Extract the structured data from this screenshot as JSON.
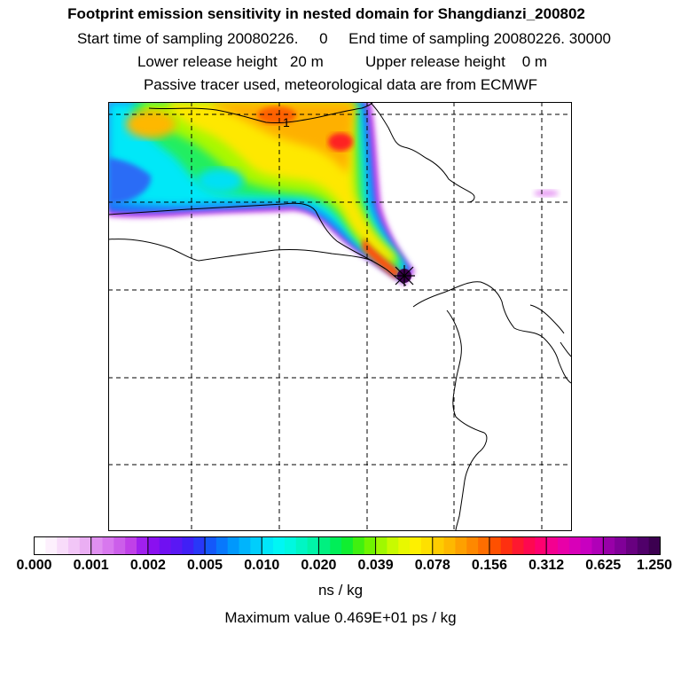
{
  "title": "Footprint emission sensitivity in nested domain for Shangdianzi_200802",
  "sampling": {
    "start_label": "Start time of sampling",
    "start_value": "20080226.     0",
    "end_label": "End time of sampling",
    "end_value": "20080226. 30000"
  },
  "release": {
    "lower_label": "Lower release height",
    "lower_value": "20 m",
    "upper_label": "Upper release height",
    "upper_value": "0 m"
  },
  "tracer_note": "Passive tracer used, meteorological data are from ECMWF",
  "map": {
    "contour_label": "1",
    "source_marker": "receptor-star-icon"
  },
  "colorbar": {
    "ticks": [
      "0.000",
      "0.001",
      "0.002",
      "0.005",
      "0.010",
      "0.020",
      "0.039",
      "0.078",
      "0.156",
      "0.312",
      "0.625",
      "1.250"
    ],
    "colors": [
      "#ffffff",
      "#fdf0fd",
      "#f8dcfa",
      "#f2c6f7",
      "#eaaef3",
      "#e090f0",
      "#d878ee",
      "#cc5eea",
      "#c040e8",
      "#a020ee",
      "#8a10f0",
      "#7010f2",
      "#5a18f4",
      "#4020f6",
      "#2838f8",
      "#1458fa",
      "#0878fc",
      "#0098fc",
      "#00b4fc",
      "#00cefc",
      "#00e6fa",
      "#00f6f4",
      "#00f8e0",
      "#00f6c4",
      "#00f4a8",
      "#00f080",
      "#00ee58",
      "#10ee30",
      "#40f010",
      "#70f400",
      "#a0f800",
      "#c8fa00",
      "#e8f800",
      "#fef000",
      "#fee000",
      "#fecc00",
      "#feb800",
      "#fea000",
      "#fe8800",
      "#fe6e00",
      "#fe5000",
      "#fe3010",
      "#fe1830",
      "#fe0850",
      "#fe0070",
      "#f40090",
      "#e800a8",
      "#d800b8",
      "#c800c0",
      "#b000b8",
      "#9800a8",
      "#800098",
      "#680080",
      "#50006a",
      "#3c0050"
    ]
  },
  "units": "ns / kg",
  "max_value": "Maximum value  0.469E+01 ps / kg"
}
